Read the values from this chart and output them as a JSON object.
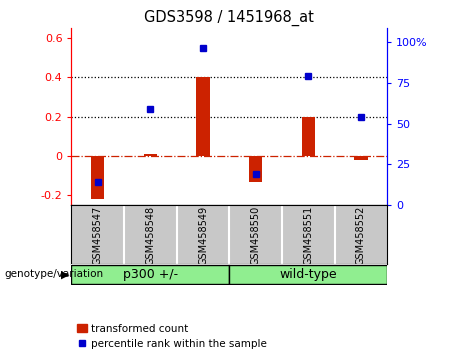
{
  "title": "GDS3598 / 1451968_at",
  "samples": [
    "GSM458547",
    "GSM458548",
    "GSM458549",
    "GSM458550",
    "GSM458551",
    "GSM458552"
  ],
  "red_values": [
    -0.22,
    0.01,
    0.4,
    -0.13,
    0.2,
    -0.02
  ],
  "blue_values": [
    -0.13,
    0.24,
    0.55,
    -0.09,
    0.41,
    0.2
  ],
  "left_ylim": [
    -0.25,
    0.65
  ],
  "left_yticks": [
    -0.2,
    0.0,
    0.2,
    0.4,
    0.6
  ],
  "left_yticklabels": [
    "-0.2",
    "0",
    "0.2",
    "0.4",
    "0.6"
  ],
  "right_ylim": [
    0,
    108.33
  ],
  "right_yticks": [
    0,
    25,
    50,
    75,
    100
  ],
  "right_yticklabels": [
    "0",
    "25",
    "50",
    "75",
    "100%"
  ],
  "hline_y": 0.0,
  "dotted_lines": [
    0.2,
    0.4
  ],
  "group1_label": "p300 +/-",
  "group2_label": "wild-type",
  "group1_color": "#90ee90",
  "group2_color": "#90ee90",
  "bar_color": "#cc2200",
  "dot_color": "#0000cc",
  "bg_color": "#ffffff",
  "plot_bg": "#ffffff",
  "label_area_color": "#c8c8c8",
  "legend_red_label": "transformed count",
  "legend_blue_label": "percentile rank within the sample",
  "genotype_label": "genotype/variation"
}
